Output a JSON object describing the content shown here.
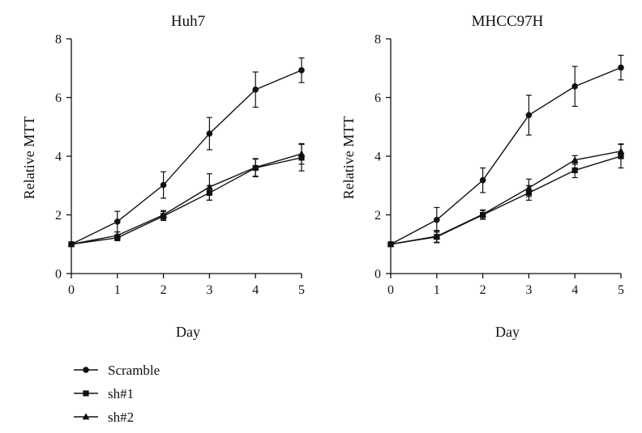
{
  "chart_data": [
    {
      "type": "line",
      "title": "Huh7",
      "xlabel": "Day",
      "ylabel": "Relative MTT",
      "x": [
        0,
        1,
        2,
        3,
        4,
        5
      ],
      "xticks": [
        "0",
        "1",
        "2",
        "3",
        "4",
        "5"
      ],
      "yticks": [
        "0",
        "2",
        "4",
        "6",
        "8"
      ],
      "xlim": [
        0,
        5
      ],
      "ylim": [
        0,
        8
      ],
      "grid": false,
      "series": [
        {
          "name": "Scramble",
          "marker": "circle",
          "values": [
            1.0,
            1.77,
            3.02,
            4.77,
            6.27,
            6.93
          ],
          "errors": [
            0.0,
            0.35,
            0.45,
            0.55,
            0.6,
            0.42
          ]
        },
        {
          "name": "sh#1",
          "marker": "square",
          "values": [
            1.0,
            1.22,
            1.96,
            2.75,
            3.6,
            3.95
          ],
          "errors": [
            0.0,
            0.1,
            0.15,
            0.25,
            0.3,
            0.45
          ]
        },
        {
          "name": "sh#2",
          "marker": "triangle",
          "values": [
            1.0,
            1.3,
            2.0,
            2.95,
            3.62,
            4.08
          ],
          "errors": [
            0.0,
            0.12,
            0.15,
            0.45,
            0.3,
            0.35
          ]
        }
      ]
    },
    {
      "type": "line",
      "title": "MHCC97H",
      "xlabel": "Day",
      "ylabel": "Relative MTT",
      "x": [
        0,
        1,
        2,
        3,
        4,
        5
      ],
      "xticks": [
        "0",
        "1",
        "2",
        "3",
        "4",
        "5"
      ],
      "yticks": [
        "0",
        "2",
        "4",
        "6",
        "8"
      ],
      "xlim": [
        0,
        5
      ],
      "ylim": [
        0,
        8
      ],
      "grid": false,
      "series": [
        {
          "name": "Scramble",
          "marker": "circle",
          "values": [
            1.0,
            1.83,
            3.18,
            5.4,
            6.38,
            7.02
          ],
          "errors": [
            0.0,
            0.42,
            0.42,
            0.68,
            0.68,
            0.42
          ]
        },
        {
          "name": "sh#1",
          "marker": "square",
          "values": [
            1.0,
            1.25,
            2.0,
            2.75,
            3.52,
            4.0
          ],
          "errors": [
            0.0,
            0.2,
            0.15,
            0.25,
            0.25,
            0.4
          ]
        },
        {
          "name": "sh#2",
          "marker": "triangle",
          "values": [
            1.0,
            1.27,
            2.02,
            2.92,
            3.87,
            4.17
          ],
          "errors": [
            0.0,
            0.2,
            0.15,
            0.3,
            0.15,
            0.25
          ]
        }
      ]
    }
  ],
  "legend": {
    "placement": "bottom-left",
    "items": [
      {
        "label": "Scramble",
        "marker": "circle"
      },
      {
        "label": "sh#1",
        "marker": "square"
      },
      {
        "label": "sh#2",
        "marker": "triangle"
      }
    ]
  },
  "colors": {
    "line": "#111111",
    "background": "#ffffff"
  }
}
